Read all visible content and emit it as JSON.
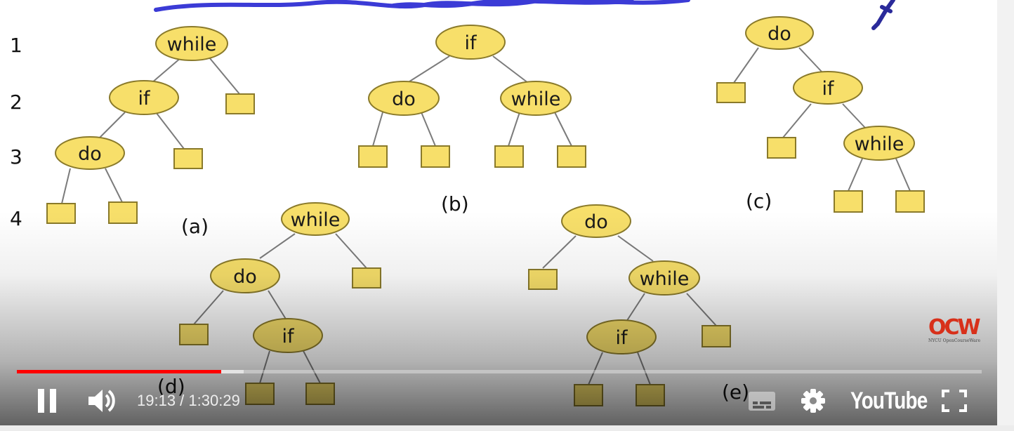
{
  "diagram": {
    "level_labels": [
      "1",
      "2",
      "3",
      "4"
    ],
    "node_labels": {
      "while": "while",
      "if": "if",
      "do": "do"
    },
    "captions": {
      "a": "(a)",
      "b": "(b)",
      "c": "(c)",
      "d": "(d)",
      "e": "(e)"
    },
    "colors": {
      "node_fill": "#f7df6a",
      "node_stroke": "#8a7a2a",
      "ink_stroke": "#3b3bd6"
    }
  },
  "player": {
    "progress": {
      "played_fraction": 0.212,
      "buffered_fraction": 0.235
    },
    "time": {
      "current": "19:13",
      "separator": " / ",
      "duration": "1:30:29"
    },
    "brand": "YouTube",
    "logo": {
      "mark": "OCW",
      "sub": "NYCU OpenCourseWare"
    },
    "icons": [
      "pause-icon",
      "volume-icon",
      "subtitles-icon",
      "settings-gear-icon",
      "fullscreen-icon"
    ],
    "colors": {
      "progress_played": "#ff0000",
      "controls": "#ffffff"
    }
  }
}
